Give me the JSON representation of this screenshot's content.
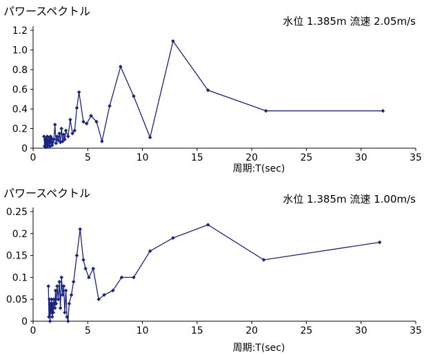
{
  "chart_data": [
    {
      "type": "line",
      "title": "パワースペクトル",
      "annotation": "水位 1.385m 流速 2.05m/s",
      "xlabel": "周期:T(sec)",
      "ylabel": "",
      "xlim": [
        0,
        35
      ],
      "ylim": [
        0,
        1.2
      ],
      "x_ticks": [
        0,
        5,
        10,
        15,
        20,
        25,
        30,
        35
      ],
      "y_ticks": [
        {
          "v": 0,
          "label": "0"
        },
        {
          "v": 0.2,
          "label": "0.2"
        },
        {
          "v": 0.4,
          "label": "0.4"
        },
        {
          "v": 0.6,
          "label": "0.6"
        },
        {
          "v": 0.8,
          "label": "0.8"
        },
        {
          "v": 1.0,
          "label": "1.0"
        },
        {
          "v": 1.2,
          "label": "1.2"
        }
      ],
      "series_color": "#1a237e",
      "x": [
        1.0,
        1.05,
        1.1,
        1.15,
        1.2,
        1.25,
        1.3,
        1.35,
        1.4,
        1.45,
        1.5,
        1.55,
        1.6,
        1.65,
        1.7,
        1.75,
        1.8,
        1.9,
        2.0,
        2.1,
        2.2,
        2.3,
        2.4,
        2.5,
        2.6,
        2.7,
        2.8,
        2.9,
        3.0,
        3.2,
        3.4,
        3.6,
        3.8,
        4.0,
        4.2,
        4.6,
        4.9,
        5.3,
        5.8,
        6.3,
        7.0,
        8.0,
        9.2,
        10.7,
        12.8,
        16.0,
        21.3,
        32.0
      ],
      "values": [
        0.12,
        0.02,
        0.09,
        0.01,
        0.1,
        0.04,
        0.12,
        0.02,
        0.08,
        0.05,
        0.11,
        0.02,
        0.12,
        0.06,
        0.1,
        0.03,
        0.06,
        0.09,
        0.24,
        0.05,
        0.12,
        0.08,
        0.15,
        0.06,
        0.2,
        0.07,
        0.14,
        0.09,
        0.18,
        0.12,
        0.29,
        0.15,
        0.18,
        0.41,
        0.57,
        0.27,
        0.25,
        0.33,
        0.27,
        0.07,
        0.43,
        0.83,
        0.53,
        0.11,
        1.09,
        0.59,
        0.38,
        0.38
      ]
    },
    {
      "type": "line",
      "title": "パワースペクトル",
      "annotation": "水位 1.385m 流速 1.00m/s",
      "xlabel": "周期:T(sec)",
      "ylabel": "",
      "xlim": [
        0,
        35
      ],
      "ylim": [
        0,
        0.25
      ],
      "x_ticks": [
        0,
        5,
        10,
        15,
        20,
        25,
        30,
        35
      ],
      "y_ticks": [
        {
          "v": 0,
          "label": "0"
        },
        {
          "v": 0.05,
          "label": "0.05"
        },
        {
          "v": 0.1,
          "label": "0.1"
        },
        {
          "v": 0.15,
          "label": "0.15"
        },
        {
          "v": 0.2,
          "label": "0.2"
        },
        {
          "v": 0.25,
          "label": "0.25"
        }
      ],
      "series_color": "#1a237e",
      "x": [
        1.4,
        1.45,
        1.5,
        1.55,
        1.6,
        1.65,
        1.7,
        1.75,
        1.8,
        1.85,
        1.9,
        2.0,
        2.05,
        2.1,
        2.2,
        2.3,
        2.4,
        2.5,
        2.6,
        2.7,
        2.8,
        2.9,
        3.0,
        3.1,
        3.2,
        3.3,
        3.5,
        3.7,
        4.0,
        4.3,
        4.6,
        4.8,
        5.1,
        5.5,
        6.0,
        6.5,
        7.3,
        8.1,
        9.2,
        10.7,
        12.8,
        16.0,
        21.1,
        31.7
      ],
      "values": [
        0.08,
        0.01,
        0.05,
        0.0,
        0.04,
        0.02,
        0.05,
        0.01,
        0.04,
        0.02,
        0.05,
        0.03,
        0.07,
        0.04,
        0.08,
        0.05,
        0.09,
        0.03,
        0.1,
        0.06,
        0.08,
        0.02,
        0.07,
        0.01,
        0.0,
        0.04,
        0.06,
        0.09,
        0.15,
        0.21,
        0.14,
        0.12,
        0.1,
        0.12,
        0.05,
        0.06,
        0.07,
        0.1,
        0.1,
        0.16,
        0.19,
        0.22,
        0.14,
        0.18
      ]
    }
  ]
}
